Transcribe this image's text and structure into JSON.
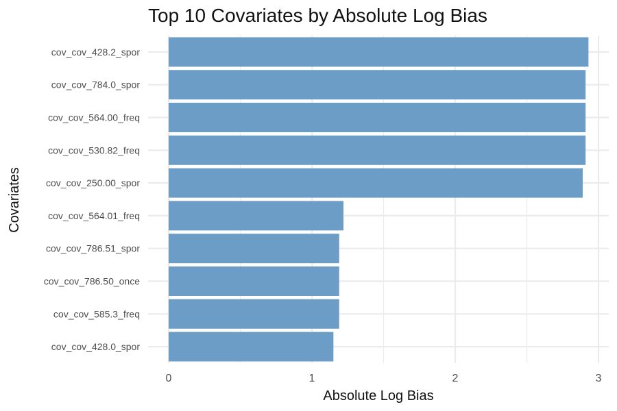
{
  "chart_data": {
    "type": "bar",
    "orientation": "horizontal",
    "title": "Top 10 Covariates by Absolute Log Bias",
    "xlabel": "Absolute Log Bias",
    "ylabel": "Covariates",
    "categories": [
      "cov_cov_428.2_spor",
      "cov_cov_784.0_spor",
      "cov_cov_564.00_freq",
      "cov_cov_530.82_freq",
      "cov_cov_250.00_spor",
      "cov_cov_564.01_freq",
      "cov_cov_786.51_spor",
      "cov_cov_786.50_once",
      "cov_cov_585.3_freq",
      "cov_cov_428.0_spor"
    ],
    "values": [
      2.93,
      2.91,
      2.91,
      2.91,
      2.89,
      1.22,
      1.19,
      1.19,
      1.19,
      1.15
    ],
    "xlim": [
      0,
      3.05
    ],
    "xticks": [
      0,
      1,
      2,
      3
    ],
    "xtick_labels": [
      "0",
      "1",
      "2",
      "3"
    ],
    "grid": true,
    "bar_color": "#6c9dc6",
    "gridline_color": "#ebebeb"
  }
}
